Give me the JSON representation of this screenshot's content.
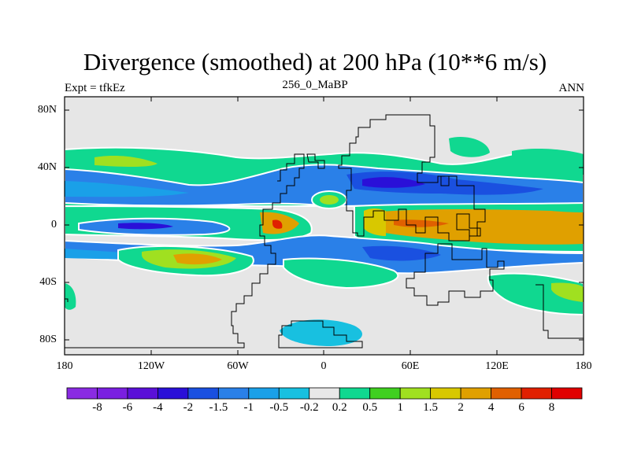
{
  "title": "Divergence (smoothed) at 200 hPa (10**6 m/s)",
  "left_string": "Expt = tfkEz",
  "center_string": "256_0_MaBP",
  "right_string": "ANN",
  "y_ticks": [
    "80N",
    "40N",
    "0",
    "40S",
    "80S"
  ],
  "x_ticks": [
    "180",
    "120W",
    "60W",
    "0",
    "60E",
    "120E",
    "180"
  ],
  "colorbar": {
    "labels": [
      "-8",
      "-6",
      "-4",
      "-2",
      "-1.5",
      "-1",
      "-0.5",
      "-0.2",
      "0.2",
      "0.5",
      "1",
      "1.5",
      "2",
      "4",
      "6",
      "8"
    ],
    "colors": [
      "#8a2be2",
      "#7a1fe0",
      "#5a10d8",
      "#2a10d8",
      "#1a50e0",
      "#2a80e8",
      "#1aa0e8",
      "#18c0e0",
      "#e8e8e8",
      "#10d890",
      "#40d020",
      "#a0e020",
      "#d8c800",
      "#e0a000",
      "#e06000",
      "#e02000",
      "#e00000"
    ]
  },
  "colors": {
    "background": "#e6e6e6",
    "coast": "#000000"
  }
}
